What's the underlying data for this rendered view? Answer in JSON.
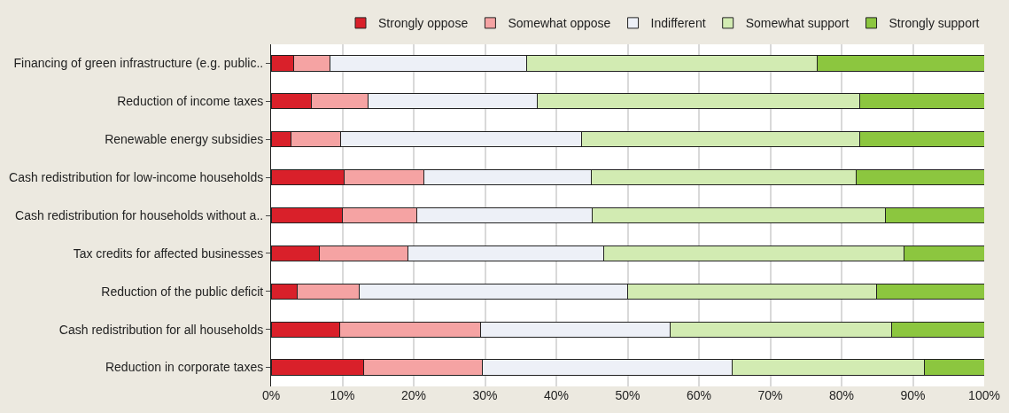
{
  "chart_data": {
    "type": "bar",
    "orientation": "horizontal",
    "stacked": true,
    "categories": [
      "Financing of green infrastructure (e.g. public..",
      "Reduction of income taxes",
      "Renewable energy subsidies",
      "Cash redistribution for low-income households",
      "Cash redistribution for households without a..",
      "Tax credits for affected businesses",
      "Reduction of the public deficit",
      "Cash redistribution for all households",
      "Reduction in corporate taxes"
    ],
    "series": [
      {
        "name": "Strongly oppose",
        "color": "#d9202a",
        "values": [
          3.2,
          5.7,
          2.8,
          10.2,
          10.0,
          6.8,
          3.7,
          9.6,
          13.0
        ]
      },
      {
        "name": "Somewhat oppose",
        "color": "#f5a3a3",
        "values": [
          5.0,
          7.9,
          7.0,
          11.2,
          10.4,
          12.4,
          8.7,
          19.8,
          16.6
        ]
      },
      {
        "name": "Indifferent",
        "color": "#edf0f7",
        "values": [
          27.6,
          23.7,
          33.8,
          23.5,
          24.6,
          27.5,
          37.6,
          26.6,
          35.0
        ]
      },
      {
        "name": "Somewhat support",
        "color": "#d2ebb2",
        "values": [
          40.8,
          45.2,
          39.0,
          37.1,
          41.1,
          42.0,
          34.9,
          31.0,
          27.0
        ]
      },
      {
        "name": "Strongly support",
        "color": "#8cc63f",
        "values": [
          23.4,
          17.5,
          17.4,
          18.0,
          13.9,
          11.3,
          15.1,
          13.0,
          8.4
        ]
      }
    ],
    "xlim": [
      0,
      100
    ],
    "xticks": [
      {
        "value": 0,
        "label": "0%"
      },
      {
        "value": 10,
        "label": "10%"
      },
      {
        "value": 20,
        "label": "20%"
      },
      {
        "value": 30,
        "label": "30%"
      },
      {
        "value": 40,
        "label": "40%"
      },
      {
        "value": 50,
        "label": "50%"
      },
      {
        "value": 60,
        "label": "60%"
      },
      {
        "value": 70,
        "label": "70%"
      },
      {
        "value": 80,
        "label": "80%"
      },
      {
        "value": 90,
        "label": "90%"
      },
      {
        "value": 100,
        "label": "100%"
      }
    ],
    "grid": "x",
    "legend": "top"
  }
}
